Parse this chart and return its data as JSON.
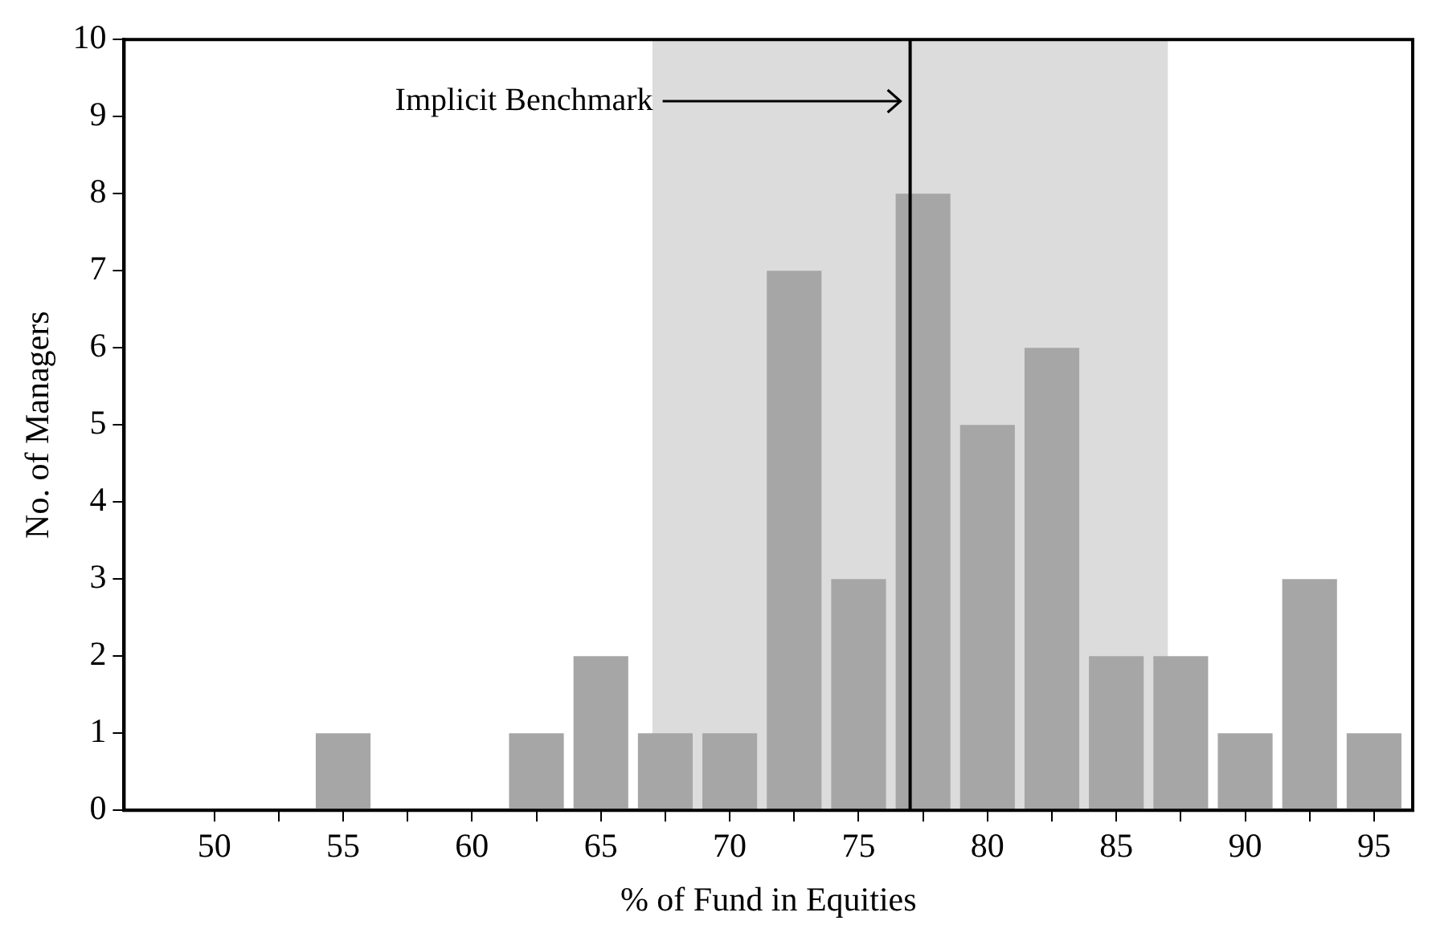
{
  "chart_data": {
    "type": "histogram",
    "xlabel": "% of Fund in Equities",
    "ylabel": "No. of Managers",
    "bins": [
      53.75,
      56.25,
      58.75,
      61.25,
      63.75,
      66.25,
      68.75,
      71.25,
      73.75,
      76.25,
      78.75,
      81.25,
      83.75,
      86.25,
      88.75,
      91.25,
      93.75,
      96.25
    ],
    "values": [
      1,
      0,
      0,
      1,
      2,
      1,
      1,
      7,
      3,
      8,
      5,
      6,
      2,
      2,
      1,
      3,
      1
    ],
    "color": "#a6a6a6",
    "xlim": [
      46.5,
      96.5
    ],
    "xticks": [
      50,
      {
        "value": 52.5,
        "label": null
      },
      55,
      {
        "value": 57.5,
        "label": null
      },
      60,
      {
        "value": 62.5,
        "label": null
      },
      65,
      {
        "value": 67.5,
        "label": null
      },
      70,
      {
        "value": 72.5,
        "label": null
      },
      75,
      {
        "value": 77.5,
        "label": null
      },
      80,
      {
        "value": 82.5,
        "label": null
      },
      85,
      {
        "value": 87.5,
        "label": null
      },
      90,
      {
        "value": 92.5,
        "label": null
      },
      95
    ],
    "ylim": [
      0,
      10
    ],
    "yticks": [
      0,
      1,
      2,
      3,
      4,
      5,
      6,
      7,
      8,
      9,
      10
    ],
    "bands": [
      {
        "axis": "x",
        "from": 67,
        "to": 87,
        "color": "#dcdcdc"
      }
    ],
    "ref_lines": [
      {
        "axis": "x",
        "value": 77,
        "label": "Implicit Benchmark",
        "color": "#000000"
      }
    ],
    "grid": false,
    "legend": false
  }
}
